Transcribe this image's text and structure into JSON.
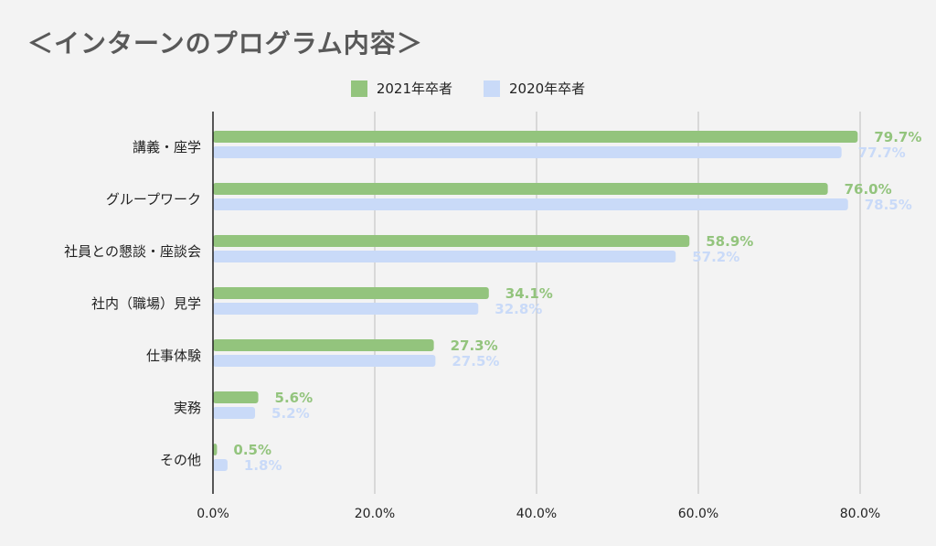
{
  "chart_data": {
    "type": "bar",
    "orientation": "horizontal",
    "title": "＜インターンのプログラム内容＞",
    "categories": [
      "講義・座学",
      "グループワーク",
      "社員との懇談・座談会",
      "社内（職場）見学",
      "仕事体験",
      "実務",
      "その他"
    ],
    "series": [
      {
        "name": "2021年卒者",
        "color": "#93c47d",
        "values": [
          79.7,
          76.0,
          58.9,
          34.1,
          27.3,
          5.6,
          0.5
        ],
        "labels": [
          "79.7%",
          "76.0%",
          "58.9%",
          "34.1%",
          "27.3%",
          "5.6%",
          "0.5%"
        ]
      },
      {
        "name": "2020年卒者",
        "color": "#c9daf8",
        "values": [
          77.7,
          78.5,
          57.2,
          32.8,
          27.5,
          5.2,
          1.8
        ],
        "labels": [
          "77.7%",
          "78.5%",
          "57.2%",
          "32.8%",
          "27.5%",
          "5.2%",
          "1.8%"
        ]
      }
    ],
    "xlim": [
      0,
      80
    ],
    "xticks": [
      0,
      20,
      40,
      60,
      80
    ],
    "xtick_labels": [
      "0.0%",
      "20.0%",
      "40.0%",
      "60.0%",
      "80.0%"
    ],
    "grid": true,
    "legend_position": "top"
  }
}
